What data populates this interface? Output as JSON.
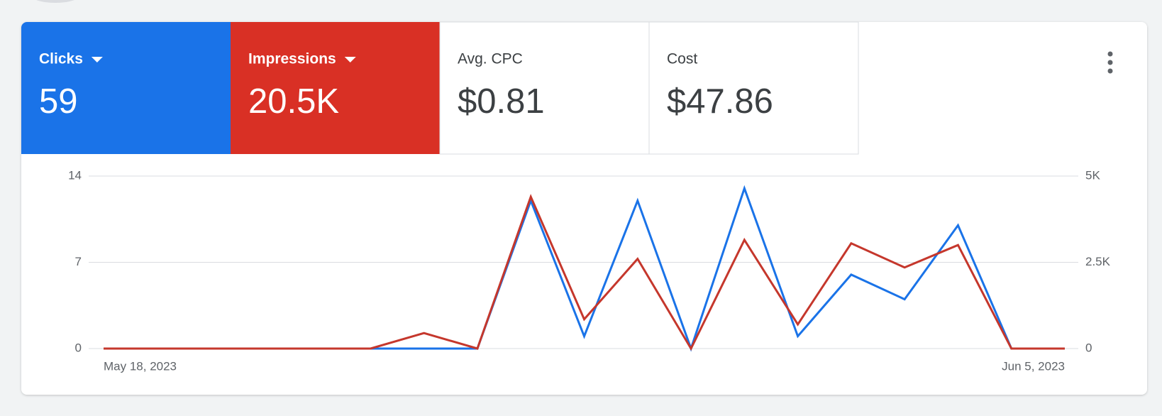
{
  "chart_data": {
    "type": "line",
    "categories": [
      "May 18, 2023",
      null,
      null,
      null,
      null,
      null,
      null,
      null,
      null,
      null,
      null,
      null,
      null,
      null,
      null,
      null,
      null,
      null,
      "Jun 5, 2023"
    ],
    "series": [
      {
        "name": "Clicks",
        "total": "59",
        "color": "#1a73e8",
        "values": [
          0,
          0,
          0,
          0,
          0,
          0,
          0,
          0,
          12,
          1,
          12,
          0,
          13,
          1,
          6,
          4,
          10,
          0,
          0
        ]
      },
      {
        "name": "Impressions",
        "total": "20.5K",
        "color": "#c5372c",
        "axis": "y2",
        "values": [
          0,
          0,
          0,
          0,
          0,
          0,
          450,
          0,
          4400,
          850,
          2600,
          0,
          3150,
          700,
          3050,
          2350,
          3000,
          0,
          0
        ]
      }
    ],
    "ylim": [
      0,
      14
    ],
    "yticks": [
      0,
      7,
      14
    ],
    "y2lim": [
      0,
      5000
    ],
    "y2ticks": [
      0,
      {
        "value": 2500,
        "label": "2.5K"
      },
      {
        "value": 5000,
        "label": "5K"
      }
    ],
    "grid": true
  },
  "other_metrics": [
    {
      "label": "Avg. CPC",
      "value": "$0.81"
    },
    {
      "label": "Cost",
      "value": "$47.86"
    }
  ]
}
